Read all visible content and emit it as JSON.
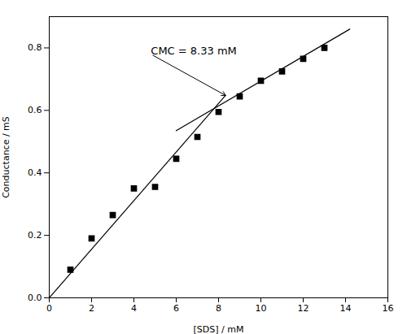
{
  "chart_data": {
    "type": "scatter",
    "xlabel": "[SDS] / mM",
    "ylabel": "Conductance / mS",
    "xlim": [
      0,
      16
    ],
    "ylim": [
      0.0,
      0.9
    ],
    "xticks": [
      0,
      2,
      4,
      6,
      8,
      10,
      12,
      14,
      16
    ],
    "yticks": [
      {
        "value": 0.0,
        "label": "0.0"
      },
      0.2,
      0.4,
      0.6,
      0.8
    ],
    "grid": false,
    "series": [
      {
        "type": "line",
        "color": "black",
        "x": [
          0.0,
          8.33
        ],
        "values": [
          0.0,
          0.648
        ]
      },
      {
        "type": "line",
        "color": "black",
        "x": [
          6.0,
          14.2
        ],
        "values": [
          0.535,
          0.86
        ]
      },
      {
        "type": "scatter",
        "color": "black",
        "marker": "square",
        "x": [
          1,
          2,
          3,
          4,
          5,
          6,
          7,
          8,
          9,
          10,
          11,
          12,
          13
        ],
        "values": [
          0.09,
          0.19,
          0.265,
          0.35,
          0.355,
          0.445,
          0.515,
          0.595,
          0.645,
          0.695,
          0.725,
          0.765,
          0.8
        ]
      }
    ],
    "annotations": [
      {
        "text": "CMC = 8.33 mM",
        "xy": [
          8.33,
          0.648
        ],
        "xytext": [
          4.8,
          0.78
        ]
      }
    ]
  }
}
